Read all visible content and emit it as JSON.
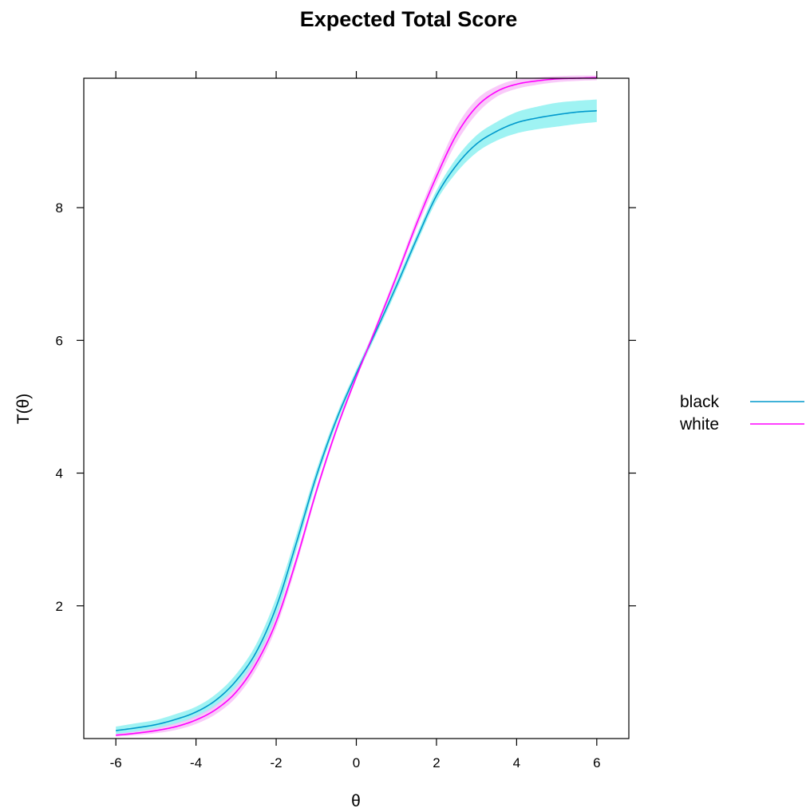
{
  "chart_data": {
    "type": "line",
    "title": "Expected Total Score",
    "xlabel": "θ",
    "ylabel": "T(θ)",
    "xlim": [
      -6.8,
      6.8
    ],
    "ylim": [
      0.0,
      9.95
    ],
    "x_ticks": [
      -6,
      -4,
      -2,
      0,
      2,
      4,
      6
    ],
    "x_tick_labels": [
      "-6",
      "-4",
      "-2",
      "0",
      "2",
      "4",
      "6"
    ],
    "y_ticks": [
      2,
      4,
      6,
      8
    ],
    "y_tick_labels": [
      "2",
      "4",
      "6",
      "8"
    ],
    "grid": false,
    "legend_position": "right",
    "series": [
      {
        "name": "black",
        "color": "#0099cc",
        "band_color": "#7fefef",
        "x": [
          -6,
          -5.5,
          -5,
          -4.5,
          -4,
          -3.5,
          -3,
          -2.5,
          -2,
          -1.5,
          -1,
          -0.5,
          0,
          0.5,
          1,
          1.5,
          2,
          2.5,
          3,
          3.5,
          4,
          4.5,
          5,
          5.5,
          6
        ],
        "y": [
          0.12,
          0.16,
          0.21,
          0.29,
          0.4,
          0.58,
          0.87,
          1.3,
          1.98,
          2.94,
          3.95,
          4.8,
          5.5,
          6.15,
          6.82,
          7.52,
          8.18,
          8.64,
          8.96,
          9.15,
          9.28,
          9.35,
          9.4,
          9.44,
          9.46
        ],
        "lower": [
          0.07,
          0.1,
          0.15,
          0.22,
          0.32,
          0.49,
          0.77,
          1.18,
          1.84,
          2.82,
          3.86,
          4.73,
          5.44,
          6.09,
          6.75,
          7.45,
          8.1,
          8.53,
          8.83,
          9.01,
          9.12,
          9.18,
          9.22,
          9.26,
          9.29
        ],
        "upper": [
          0.18,
          0.23,
          0.28,
          0.37,
          0.48,
          0.67,
          0.97,
          1.42,
          2.12,
          3.06,
          4.04,
          4.87,
          5.56,
          6.21,
          6.89,
          7.59,
          8.26,
          8.75,
          9.09,
          9.29,
          9.44,
          9.52,
          9.58,
          9.61,
          9.63
        ]
      },
      {
        "name": "white",
        "color": "#ff00ff",
        "band_color": "#f7b8f7",
        "x": [
          -6,
          -5.5,
          -5,
          -4.5,
          -4,
          -3.5,
          -3,
          -2.5,
          -2,
          -1.5,
          -1,
          -0.5,
          0,
          0.5,
          1,
          1.5,
          2,
          2.5,
          3,
          3.5,
          4,
          4.5,
          5,
          5.5,
          6
        ],
        "y": [
          0.05,
          0.08,
          0.12,
          0.18,
          0.28,
          0.44,
          0.7,
          1.13,
          1.76,
          2.68,
          3.72,
          4.65,
          5.45,
          6.2,
          6.96,
          7.75,
          8.47,
          9.1,
          9.52,
          9.75,
          9.86,
          9.91,
          9.94,
          9.95,
          9.96
        ],
        "lower": [
          0.03,
          0.05,
          0.08,
          0.13,
          0.22,
          0.37,
          0.62,
          1.04,
          1.67,
          2.6,
          3.66,
          4.6,
          5.41,
          6.15,
          6.9,
          7.67,
          8.37,
          8.98,
          9.41,
          9.67,
          9.79,
          9.85,
          9.89,
          9.91,
          9.92
        ],
        "upper": [
          0.07,
          0.11,
          0.16,
          0.23,
          0.34,
          0.51,
          0.78,
          1.22,
          1.85,
          2.76,
          3.78,
          4.7,
          5.49,
          6.25,
          7.02,
          7.83,
          8.57,
          9.22,
          9.63,
          9.83,
          9.93,
          9.96,
          9.98,
          9.99,
          9.99
        ]
      }
    ]
  }
}
